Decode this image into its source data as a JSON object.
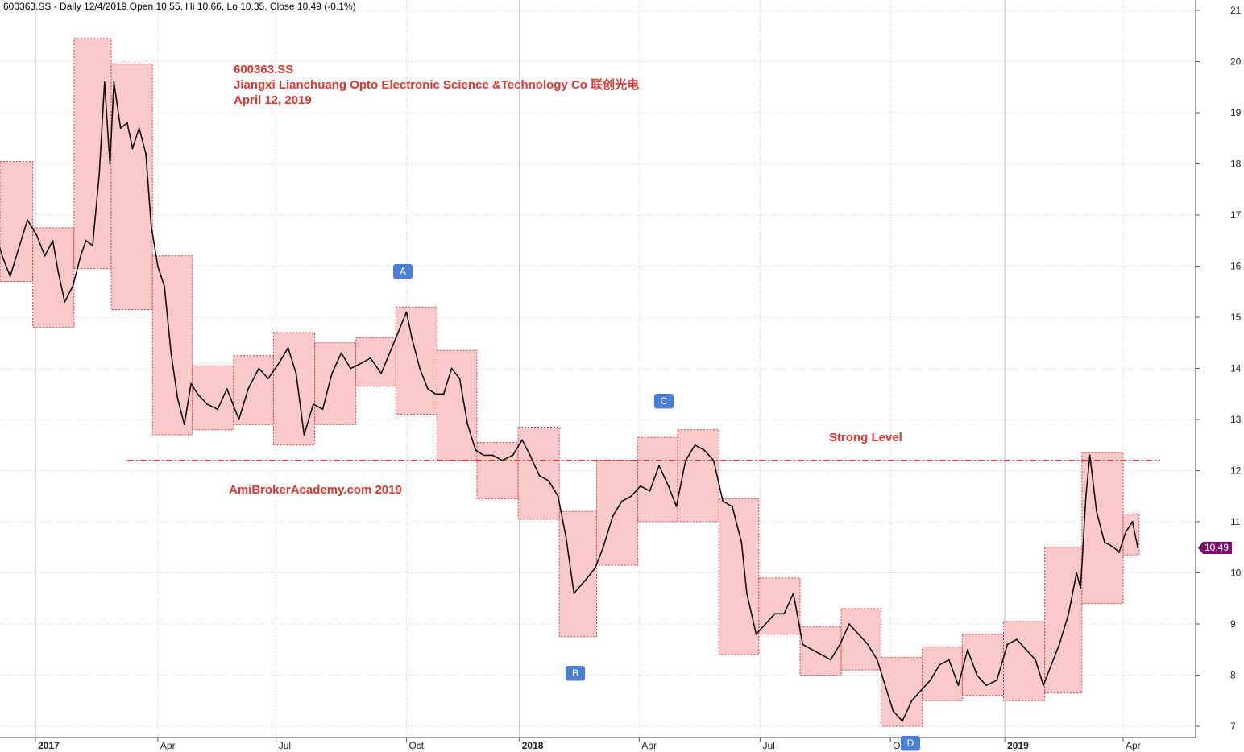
{
  "header": {
    "text": "600363.SS - Daily 12/4/2019 Open 10.55, Hi 10.66, Lo 10.35, Close 10.49 (-0.1%)"
  },
  "title": {
    "ticker": "600363.SS",
    "company": "Jiangxi Lianchuang Opto Electronic Science &Technology Co  联创光电",
    "date": "April 12, 2019"
  },
  "watermark": "AmiBrokerAcademy.com  2019",
  "level_label": "Strong Level",
  "last_price_label": "10.49",
  "markers": [
    {
      "label": "A"
    },
    {
      "label": "B"
    },
    {
      "label": "C"
    },
    {
      "label": "D"
    }
  ],
  "colors": {
    "box_fill": "#f9c4c4",
    "box_border": "#d9383a",
    "annotation": "#e0342e",
    "level_line": "#e0342e",
    "marker": "#4a7fd4",
    "last_price": "#7b0f6e",
    "grid": "#cfd6dc"
  },
  "chart_data": {
    "type": "line",
    "ylim": [
      7,
      21
    ],
    "y_ticks": [
      7,
      8,
      9,
      10,
      11,
      12,
      13,
      14,
      15,
      16,
      17,
      18,
      19,
      20,
      21
    ],
    "x_range": [
      "2016-12-01",
      "2019-05-10"
    ],
    "x_ticks": [
      {
        "date": "2017-01-03",
        "label": "2017",
        "major": true
      },
      {
        "date": "2017-04-05",
        "label": "Apr",
        "major": false
      },
      {
        "date": "2017-07-03",
        "label": "Jul",
        "major": false
      },
      {
        "date": "2017-10-09",
        "label": "Oct",
        "major": false
      },
      {
        "date": "2018-01-02",
        "label": "2018",
        "major": true
      },
      {
        "date": "2018-04-02",
        "label": "Apr",
        "major": false
      },
      {
        "date": "2018-07-02",
        "label": "Jul",
        "major": false
      },
      {
        "date": "2018-10-08",
        "label": "Oct",
        "major": false
      },
      {
        "date": "2019-01-02",
        "label": "2019",
        "major": true
      },
      {
        "date": "2019-04-01",
        "label": "Apr",
        "major": false
      }
    ],
    "strong_level": 12.2,
    "monthly_ranges": [
      {
        "start": "2016-12-01",
        "end": "2017-01-01",
        "low": 15.7,
        "high": 18.05
      },
      {
        "start": "2017-01-01",
        "end": "2017-02-01",
        "low": 14.8,
        "high": 16.75
      },
      {
        "start": "2017-02-01",
        "end": "2017-03-01",
        "low": 15.95,
        "high": 20.45
      },
      {
        "start": "2017-03-01",
        "end": "2017-04-01",
        "low": 15.15,
        "high": 19.95
      },
      {
        "start": "2017-04-01",
        "end": "2017-05-01",
        "low": 12.7,
        "high": 16.2
      },
      {
        "start": "2017-05-01",
        "end": "2017-06-01",
        "low": 12.8,
        "high": 14.05
      },
      {
        "start": "2017-06-01",
        "end": "2017-07-01",
        "low": 12.9,
        "high": 14.25
      },
      {
        "start": "2017-07-01",
        "end": "2017-08-01",
        "low": 12.5,
        "high": 14.7
      },
      {
        "start": "2017-08-01",
        "end": "2017-09-01",
        "low": 12.9,
        "high": 14.5
      },
      {
        "start": "2017-09-01",
        "end": "2017-10-01",
        "low": 13.65,
        "high": 14.6
      },
      {
        "start": "2017-10-01",
        "end": "2017-11-01",
        "low": 13.1,
        "high": 15.2
      },
      {
        "start": "2017-11-01",
        "end": "2017-12-01",
        "low": 12.2,
        "high": 14.35
      },
      {
        "start": "2017-12-01",
        "end": "2018-01-01",
        "low": 11.45,
        "high": 12.55
      },
      {
        "start": "2018-01-01",
        "end": "2018-02-01",
        "low": 11.05,
        "high": 12.85
      },
      {
        "start": "2018-02-01",
        "end": "2018-03-01",
        "low": 8.75,
        "high": 11.2
      },
      {
        "start": "2018-03-01",
        "end": "2018-04-01",
        "low": 10.15,
        "high": 12.2
      },
      {
        "start": "2018-04-01",
        "end": "2018-05-01",
        "low": 11.0,
        "high": 12.65
      },
      {
        "start": "2018-05-01",
        "end": "2018-06-01",
        "low": 11.0,
        "high": 12.8
      },
      {
        "start": "2018-06-01",
        "end": "2018-07-01",
        "low": 8.4,
        "high": 11.45
      },
      {
        "start": "2018-07-01",
        "end": "2018-08-01",
        "low": 8.8,
        "high": 9.9
      },
      {
        "start": "2018-08-01",
        "end": "2018-09-01",
        "low": 8.0,
        "high": 8.95
      },
      {
        "start": "2018-09-01",
        "end": "2018-10-01",
        "low": 8.1,
        "high": 9.3
      },
      {
        "start": "2018-10-01",
        "end": "2018-11-01",
        "low": 7.0,
        "high": 8.35
      },
      {
        "start": "2018-11-01",
        "end": "2018-12-01",
        "low": 7.5,
        "high": 8.55
      },
      {
        "start": "2018-12-01",
        "end": "2019-01-01",
        "low": 7.6,
        "high": 8.8
      },
      {
        "start": "2019-01-01",
        "end": "2019-02-01",
        "low": 7.5,
        "high": 9.05
      },
      {
        "start": "2019-02-01",
        "end": "2019-03-01",
        "low": 7.65,
        "high": 10.5
      },
      {
        "start": "2019-03-01",
        "end": "2019-04-01",
        "low": 9.4,
        "high": 12.35
      },
      {
        "start": "2019-04-01",
        "end": "2019-04-13",
        "low": 10.35,
        "high": 11.15
      }
    ],
    "series": [
      {
        "values": [
          [
            "2016-12-02",
            16.8
          ],
          [
            "2016-12-09",
            16.2
          ],
          [
            "2016-12-15",
            15.8
          ],
          [
            "2016-12-22",
            16.4
          ],
          [
            "2016-12-28",
            16.9
          ],
          [
            "2017-01-04",
            16.6
          ],
          [
            "2017-01-10",
            16.2
          ],
          [
            "2017-01-16",
            16.5
          ],
          [
            "2017-01-20",
            15.9
          ],
          [
            "2017-01-25",
            15.3
          ],
          [
            "2017-01-31",
            15.6
          ],
          [
            "2017-02-06",
            16.2
          ],
          [
            "2017-02-10",
            16.5
          ],
          [
            "2017-02-15",
            16.4
          ],
          [
            "2017-02-20",
            17.8
          ],
          [
            "2017-02-24",
            19.6
          ],
          [
            "2017-02-28",
            18.0
          ],
          [
            "2017-03-03",
            19.6
          ],
          [
            "2017-03-08",
            18.7
          ],
          [
            "2017-03-13",
            18.8
          ],
          [
            "2017-03-17",
            18.3
          ],
          [
            "2017-03-22",
            18.7
          ],
          [
            "2017-03-27",
            18.2
          ],
          [
            "2017-03-31",
            16.8
          ],
          [
            "2017-04-05",
            16.0
          ],
          [
            "2017-04-10",
            15.6
          ],
          [
            "2017-04-15",
            14.3
          ],
          [
            "2017-04-20",
            13.4
          ],
          [
            "2017-04-25",
            12.9
          ],
          [
            "2017-04-30",
            13.7
          ],
          [
            "2017-05-05",
            13.5
          ],
          [
            "2017-05-12",
            13.3
          ],
          [
            "2017-05-20",
            13.2
          ],
          [
            "2017-05-27",
            13.6
          ],
          [
            "2017-06-05",
            13.0
          ],
          [
            "2017-06-12",
            13.6
          ],
          [
            "2017-06-20",
            14.0
          ],
          [
            "2017-06-27",
            13.8
          ],
          [
            "2017-07-05",
            14.1
          ],
          [
            "2017-07-12",
            14.4
          ],
          [
            "2017-07-18",
            13.9
          ],
          [
            "2017-07-24",
            12.7
          ],
          [
            "2017-07-31",
            13.3
          ],
          [
            "2017-08-07",
            13.2
          ],
          [
            "2017-08-14",
            13.9
          ],
          [
            "2017-08-21",
            14.3
          ],
          [
            "2017-08-28",
            14.0
          ],
          [
            "2017-09-05",
            14.1
          ],
          [
            "2017-09-12",
            14.2
          ],
          [
            "2017-09-20",
            13.9
          ],
          [
            "2017-09-28",
            14.4
          ],
          [
            "2017-10-09",
            15.1
          ],
          [
            "2017-10-13",
            14.6
          ],
          [
            "2017-10-19",
            14.0
          ],
          [
            "2017-10-25",
            13.6
          ],
          [
            "2017-10-31",
            13.5
          ],
          [
            "2017-11-06",
            13.5
          ],
          [
            "2017-11-12",
            14.0
          ],
          [
            "2017-11-18",
            13.8
          ],
          [
            "2017-11-24",
            12.9
          ],
          [
            "2017-11-30",
            12.4
          ],
          [
            "2017-12-06",
            12.3
          ],
          [
            "2017-12-13",
            12.3
          ],
          [
            "2017-12-20",
            12.2
          ],
          [
            "2017-12-28",
            12.3
          ],
          [
            "2018-01-04",
            12.6
          ],
          [
            "2018-01-10",
            12.3
          ],
          [
            "2018-01-17",
            11.9
          ],
          [
            "2018-01-24",
            11.8
          ],
          [
            "2018-01-31",
            11.5
          ],
          [
            "2018-02-06",
            10.7
          ],
          [
            "2018-02-12",
            9.6
          ],
          [
            "2018-02-22",
            9.9
          ],
          [
            "2018-02-28",
            10.1
          ],
          [
            "2018-03-06",
            10.5
          ],
          [
            "2018-03-13",
            11.1
          ],
          [
            "2018-03-20",
            11.4
          ],
          [
            "2018-03-27",
            11.5
          ],
          [
            "2018-04-03",
            11.7
          ],
          [
            "2018-04-10",
            11.6
          ],
          [
            "2018-04-17",
            12.1
          ],
          [
            "2018-04-24",
            11.7
          ],
          [
            "2018-04-30",
            11.3
          ],
          [
            "2018-05-07",
            12.2
          ],
          [
            "2018-05-14",
            12.5
          ],
          [
            "2018-05-21",
            12.4
          ],
          [
            "2018-05-28",
            12.2
          ],
          [
            "2018-06-04",
            11.4
          ],
          [
            "2018-06-11",
            11.3
          ],
          [
            "2018-06-18",
            10.6
          ],
          [
            "2018-06-22",
            9.6
          ],
          [
            "2018-06-29",
            8.8
          ],
          [
            "2018-07-06",
            9.0
          ],
          [
            "2018-07-13",
            9.2
          ],
          [
            "2018-07-20",
            9.2
          ],
          [
            "2018-07-27",
            9.6
          ],
          [
            "2018-08-03",
            8.6
          ],
          [
            "2018-08-10",
            8.5
          ],
          [
            "2018-08-17",
            8.4
          ],
          [
            "2018-08-24",
            8.3
          ],
          [
            "2018-08-31",
            8.6
          ],
          [
            "2018-09-07",
            9.0
          ],
          [
            "2018-09-14",
            8.8
          ],
          [
            "2018-09-21",
            8.6
          ],
          [
            "2018-09-28",
            8.3
          ],
          [
            "2018-10-10",
            7.3
          ],
          [
            "2018-10-17",
            7.1
          ],
          [
            "2018-10-24",
            7.5
          ],
          [
            "2018-10-31",
            7.7
          ],
          [
            "2018-11-07",
            7.9
          ],
          [
            "2018-11-14",
            8.2
          ],
          [
            "2018-11-21",
            8.3
          ],
          [
            "2018-11-28",
            7.8
          ],
          [
            "2018-12-05",
            8.5
          ],
          [
            "2018-12-12",
            8.0
          ],
          [
            "2018-12-19",
            7.8
          ],
          [
            "2018-12-27",
            7.9
          ],
          [
            "2019-01-04",
            8.6
          ],
          [
            "2019-01-11",
            8.7
          ],
          [
            "2019-01-18",
            8.5
          ],
          [
            "2019-01-25",
            8.3
          ],
          [
            "2019-01-31",
            7.8
          ],
          [
            "2019-02-12",
            8.6
          ],
          [
            "2019-02-19",
            9.2
          ],
          [
            "2019-02-25",
            10.0
          ],
          [
            "2019-02-28",
            9.7
          ],
          [
            "2019-03-04",
            11.5
          ],
          [
            "2019-03-07",
            12.3
          ],
          [
            "2019-03-12",
            11.2
          ],
          [
            "2019-03-18",
            10.6
          ],
          [
            "2019-03-25",
            10.5
          ],
          [
            "2019-03-29",
            10.4
          ],
          [
            "2019-04-03",
            10.8
          ],
          [
            "2019-04-08",
            11.0
          ],
          [
            "2019-04-12",
            10.49
          ]
        ]
      }
    ]
  }
}
